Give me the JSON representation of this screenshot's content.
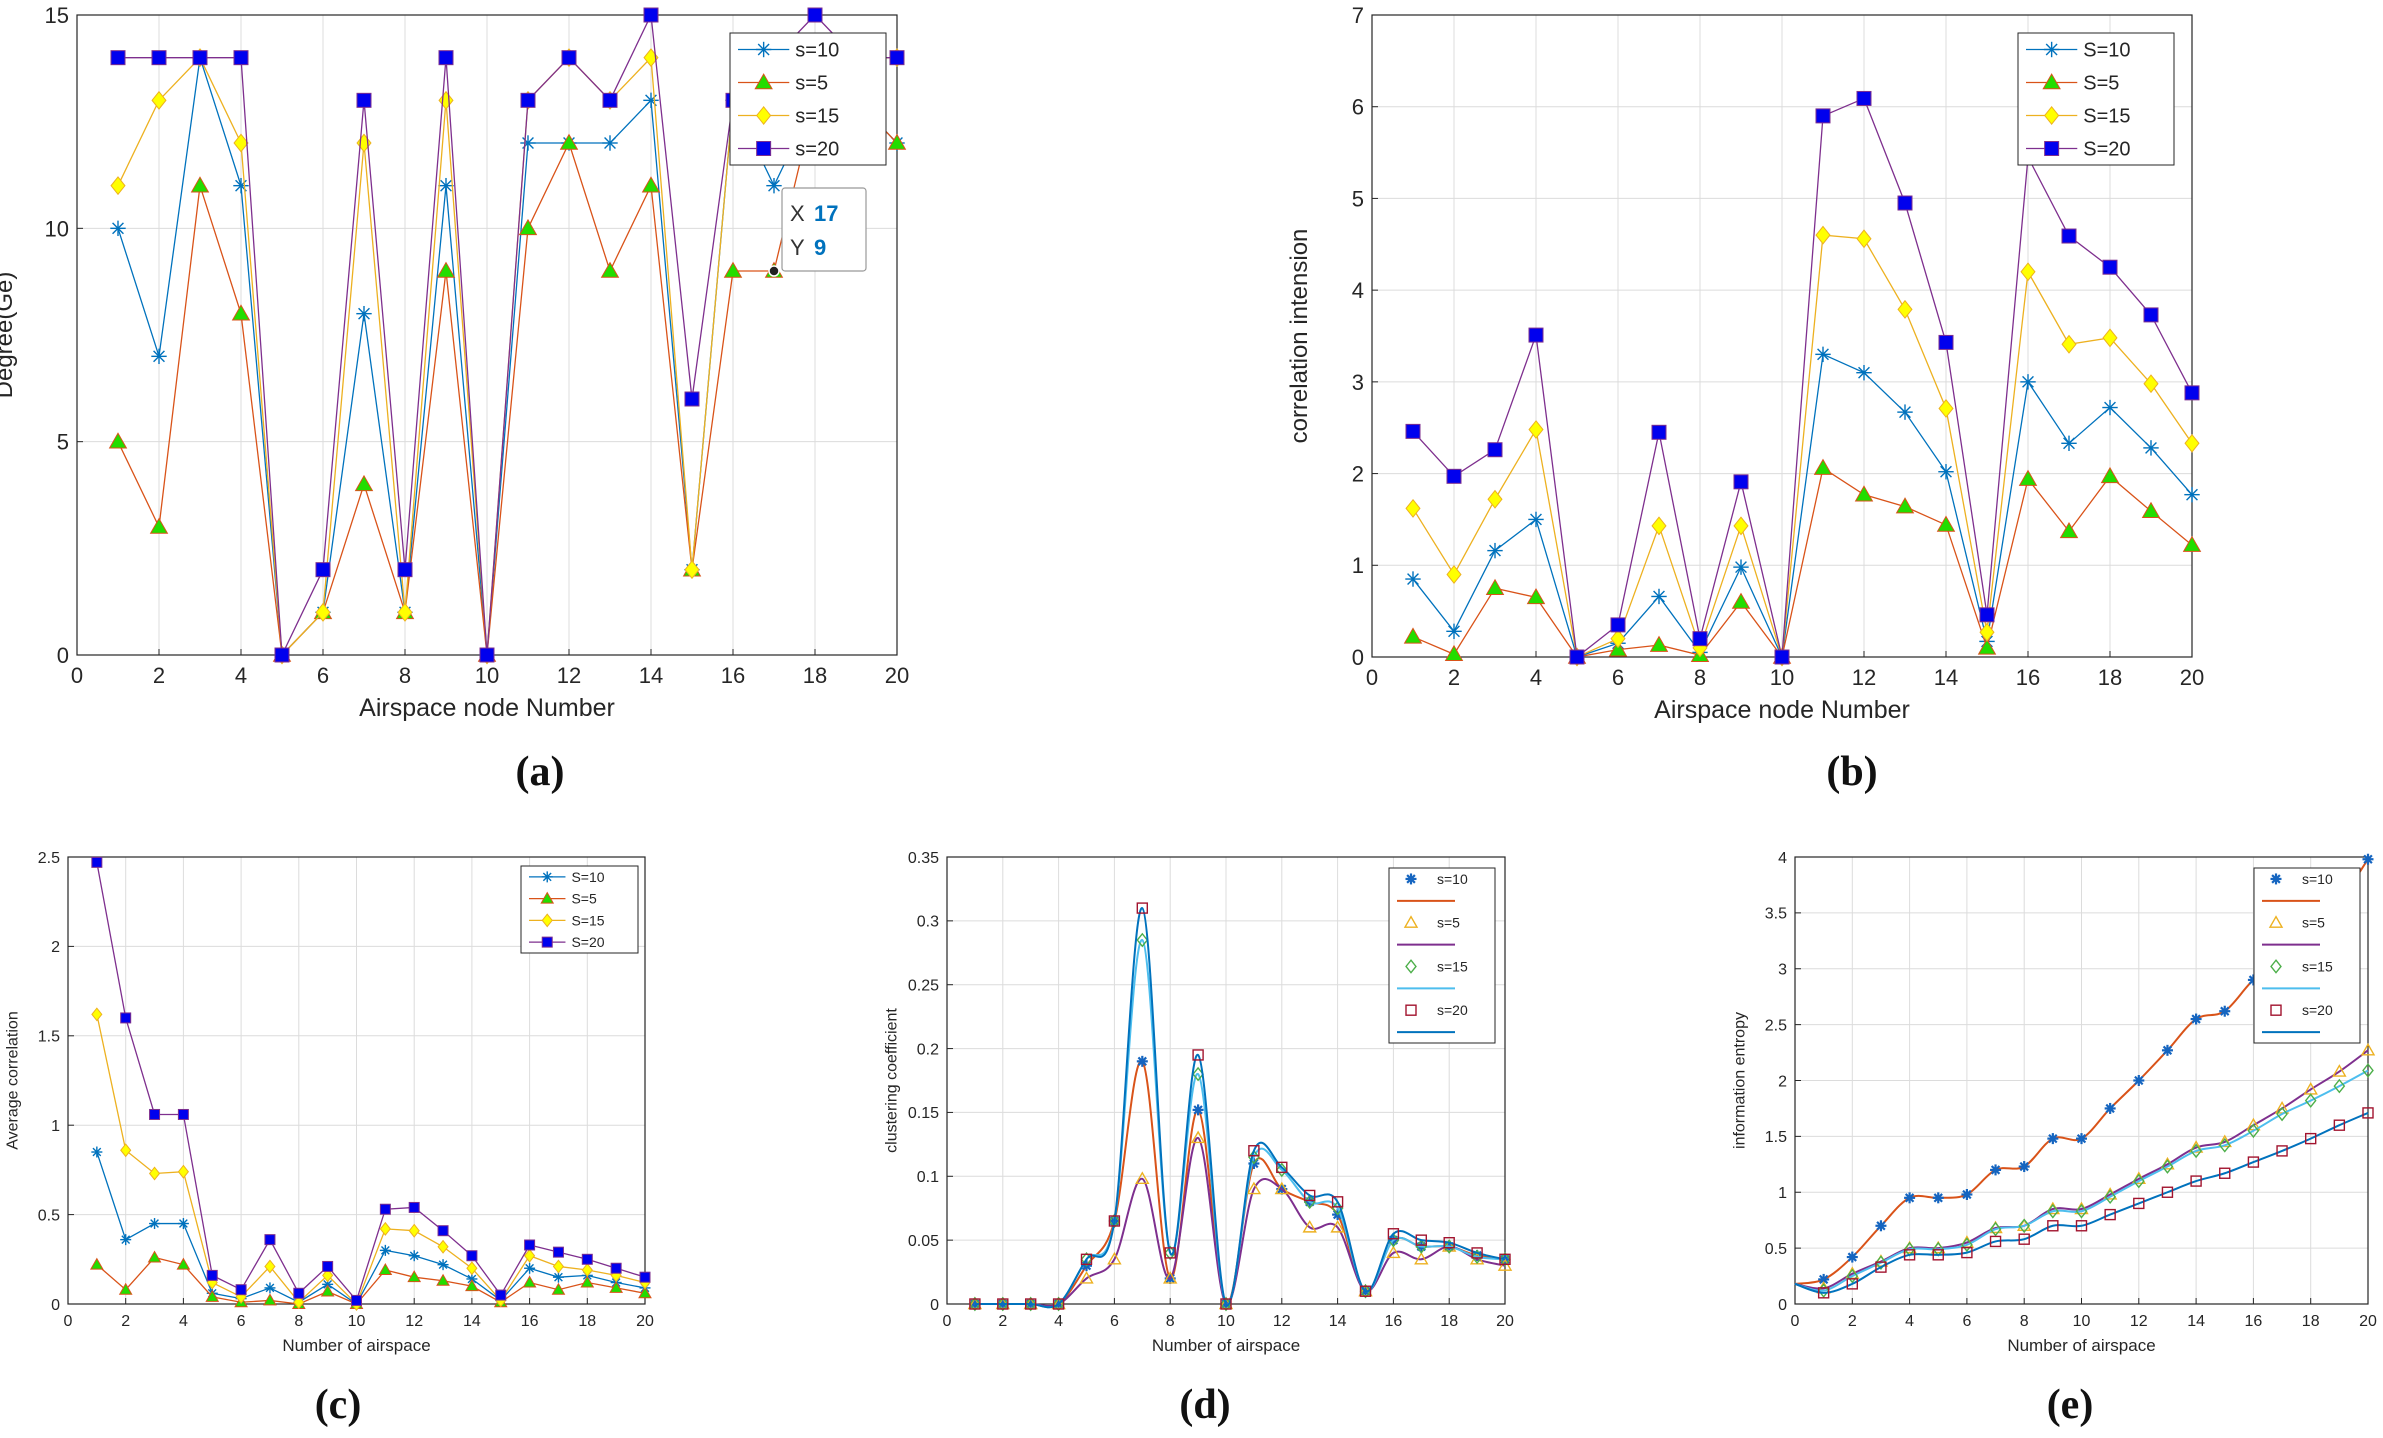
{
  "chart_data": [
    {
      "id": "a",
      "type": "line",
      "caption": "(a)",
      "xlabel": "Airspace node Number",
      "ylabel": "Degree(Ge)",
      "xlim": [
        0,
        20
      ],
      "ylim": [
        0,
        15
      ],
      "xticks": [
        0,
        2,
        4,
        6,
        8,
        10,
        12,
        14,
        16,
        18,
        20
      ],
      "yticks": [
        0,
        5,
        10,
        15
      ],
      "grid": true,
      "legend_position": "top-right",
      "x": [
        1,
        2,
        3,
        4,
        5,
        6,
        7,
        8,
        9,
        10,
        11,
        12,
        13,
        14,
        15,
        16,
        17,
        18,
        19,
        20
      ],
      "series": [
        {
          "name": "s=10",
          "color": "#0072BD",
          "marker": "star",
          "values": [
            10,
            7,
            14,
            11,
            0,
            1,
            8,
            1,
            11,
            0,
            12,
            12,
            12,
            13,
            2,
            13,
            11,
            13,
            13,
            12
          ]
        },
        {
          "name": "s=5",
          "color": "#D95319",
          "marker": "triangle-filled",
          "markerFill": "#22DD00",
          "values": [
            5,
            3,
            11,
            8,
            0,
            1,
            4,
            1,
            9,
            0,
            10,
            12,
            9,
            11,
            2,
            9,
            9,
            13,
            13,
            12
          ]
        },
        {
          "name": "s=15",
          "color": "#EDB120",
          "marker": "diamond-filled",
          "markerFill": "#FFFF00",
          "values": [
            11,
            13,
            14,
            12,
            0,
            1,
            12,
            1,
            13,
            0,
            13,
            14,
            13,
            14,
            2,
            13,
            14,
            14,
            14,
            14
          ]
        },
        {
          "name": "s=20",
          "color": "#7E2F8E",
          "marker": "square-filled",
          "markerFill": "#0000EE",
          "values": [
            14,
            14,
            14,
            14,
            0,
            2,
            13,
            2,
            14,
            0,
            13,
            14,
            13,
            15,
            6,
            13,
            14,
            15,
            14,
            14
          ]
        }
      ],
      "datatip": {
        "x_label": "X",
        "x_value": "17",
        "y_label": "Y",
        "y_value": "9",
        "point_x": 17,
        "point_y": 9
      }
    },
    {
      "id": "b",
      "type": "line",
      "caption": "(b)",
      "xlabel": "Airspace node Number",
      "ylabel": "correlation intension",
      "xlim": [
        0,
        20
      ],
      "ylim": [
        0,
        7
      ],
      "xticks": [
        0,
        2,
        4,
        6,
        8,
        10,
        12,
        14,
        16,
        18,
        20
      ],
      "yticks": [
        0,
        1,
        2,
        3,
        4,
        5,
        6,
        7
      ],
      "grid": true,
      "legend_position": "top-right",
      "x": [
        1,
        2,
        3,
        4,
        5,
        6,
        7,
        8,
        9,
        10,
        11,
        12,
        13,
        14,
        15,
        16,
        17,
        18,
        19,
        20
      ],
      "series": [
        {
          "name": "S=10",
          "color": "#0072BD",
          "marker": "star",
          "values": [
            0.85,
            0.28,
            1.16,
            1.5,
            0,
            0.15,
            0.66,
            0.05,
            0.98,
            0,
            3.3,
            3.1,
            2.67,
            2.02,
            0.17,
            3.0,
            2.33,
            2.72,
            2.28,
            1.77
          ]
        },
        {
          "name": "S=5",
          "color": "#D95319",
          "marker": "triangle-filled",
          "markerFill": "#22DD00",
          "values": [
            0.22,
            0.03,
            0.75,
            0.65,
            0,
            0.08,
            0.13,
            0.02,
            0.6,
            0,
            2.06,
            1.77,
            1.64,
            1.44,
            0.1,
            1.94,
            1.37,
            1.97,
            1.59,
            1.22
          ]
        },
        {
          "name": "S=15",
          "color": "#EDB120",
          "marker": "diamond-filled",
          "markerFill": "#FFFF00",
          "values": [
            1.62,
            0.9,
            1.72,
            2.48,
            0,
            0.2,
            1.43,
            0.1,
            1.43,
            0,
            4.6,
            4.56,
            3.79,
            2.71,
            0.27,
            4.2,
            3.41,
            3.48,
            2.98,
            2.33
          ]
        },
        {
          "name": "S=20",
          "color": "#7E2F8E",
          "marker": "square-filled",
          "markerFill": "#0000EE",
          "values": [
            2.46,
            1.97,
            2.26,
            3.51,
            0,
            0.35,
            2.45,
            0.2,
            1.91,
            0,
            5.9,
            6.09,
            4.95,
            3.43,
            0.46,
            5.45,
            4.59,
            4.25,
            3.73,
            2.88
          ]
        }
      ]
    },
    {
      "id": "c",
      "type": "line",
      "caption": "(c)",
      "xlabel": "Number of airspace",
      "ylabel": "Average correlation",
      "xlim": [
        0,
        20
      ],
      "ylim": [
        0,
        2.5
      ],
      "xticks": [
        0,
        2,
        4,
        6,
        8,
        10,
        12,
        14,
        16,
        18,
        20
      ],
      "yticks": [
        0,
        0.5,
        1,
        1.5,
        2,
        2.5
      ],
      "grid": true,
      "legend_position": "top-right",
      "x": [
        1,
        2,
        3,
        4,
        5,
        6,
        7,
        8,
        9,
        10,
        11,
        12,
        13,
        14,
        15,
        16,
        17,
        18,
        19,
        20
      ],
      "series": [
        {
          "name": "S=10",
          "color": "#0072BD",
          "marker": "star",
          "values": [
            0.85,
            0.36,
            0.45,
            0.45,
            0.06,
            0.03,
            0.09,
            0.01,
            0.11,
            0,
            0.3,
            0.27,
            0.22,
            0.14,
            0.02,
            0.2,
            0.15,
            0.16,
            0.12,
            0.09
          ]
        },
        {
          "name": "S=5",
          "color": "#D95319",
          "marker": "triangle-filled",
          "markerFill": "#22DD00",
          "values": [
            0.22,
            0.08,
            0.26,
            0.22,
            0.04,
            0.01,
            0.02,
            0,
            0.07,
            0,
            0.19,
            0.15,
            0.13,
            0.1,
            0.01,
            0.12,
            0.08,
            0.12,
            0.09,
            0.06
          ]
        },
        {
          "name": "S=15",
          "color": "#EDB120",
          "marker": "diamond-filled",
          "markerFill": "#FFFF00",
          "values": [
            1.62,
            0.86,
            0.73,
            0.74,
            0.12,
            0.04,
            0.21,
            0.01,
            0.16,
            0,
            0.42,
            0.41,
            0.32,
            0.2,
            0.02,
            0.27,
            0.21,
            0.19,
            0.16,
            0.12
          ]
        },
        {
          "name": "S=20",
          "color": "#7E2F8E",
          "marker": "square-filled",
          "markerFill": "#0000EE",
          "values": [
            2.47,
            1.6,
            1.06,
            1.06,
            0.16,
            0.08,
            0.36,
            0.06,
            0.21,
            0.02,
            0.53,
            0.54,
            0.41,
            0.27,
            0.05,
            0.33,
            0.29,
            0.25,
            0.2,
            0.15
          ]
        }
      ]
    },
    {
      "id": "d",
      "type": "line",
      "caption": "(d)",
      "xlabel": "Number of airspace",
      "ylabel": "clustering coefficient",
      "xlim": [
        0,
        20
      ],
      "ylim": [
        0,
        0.35
      ],
      "xticks": [
        0,
        2,
        4,
        6,
        8,
        10,
        12,
        14,
        16,
        18,
        20
      ],
      "yticks": [
        0,
        0.05,
        0.1,
        0.15,
        0.2,
        0.25,
        0.3,
        0.35
      ],
      "grid": true,
      "legend_position": "top-right",
      "x": [
        1,
        2,
        3,
        4,
        5,
        6,
        7,
        8,
        9,
        10,
        11,
        12,
        13,
        14,
        15,
        16,
        17,
        18,
        19,
        20
      ],
      "series": [
        {
          "name": "s=10",
          "color": "#1565C0",
          "lineColor": "#D95319",
          "marker": "asterisk",
          "values": [
            0,
            0,
            0,
            0,
            0.03,
            0.065,
            0.19,
            0.02,
            0.152,
            0,
            0.11,
            0.09,
            0.08,
            0.07,
            0.01,
            0.05,
            0.045,
            0.045,
            0.038,
            0.035
          ]
        },
        {
          "name": "s=5",
          "color": "#EDB120",
          "lineColor": "#7E2F8E",
          "marker": "triangle-open",
          "values": [
            0,
            0,
            0,
            0,
            0.02,
            0.035,
            0.098,
            0.02,
            0.13,
            0,
            0.09,
            0.09,
            0.06,
            0.06,
            0.01,
            0.04,
            0.035,
            0.045,
            0.035,
            0.03
          ]
        },
        {
          "name": "s=15",
          "color": "#4DAF4A",
          "lineColor": "#4DBEEE",
          "marker": "diamond-open",
          "values": [
            0,
            0,
            0,
            0,
            0.035,
            0.065,
            0.285,
            0.04,
            0.18,
            0,
            0.115,
            0.105,
            0.08,
            0.075,
            0.01,
            0.05,
            0.045,
            0.045,
            0.037,
            0.035
          ]
        },
        {
          "name": "s=20",
          "color": "#A2142F",
          "lineColor": "#0072BD",
          "marker": "square-open",
          "values": [
            0,
            0,
            0,
            0,
            0.035,
            0.065,
            0.31,
            0.04,
            0.195,
            0,
            0.12,
            0.107,
            0.085,
            0.08,
            0.01,
            0.055,
            0.05,
            0.048,
            0.04,
            0.035
          ]
        }
      ]
    },
    {
      "id": "e",
      "type": "line",
      "caption": "(e)",
      "xlabel": "Number of airspace",
      "ylabel": "information entropy",
      "xlim": [
        0,
        20
      ],
      "ylim": [
        0,
        4
      ],
      "xticks": [
        0,
        2,
        4,
        6,
        8,
        10,
        12,
        14,
        16,
        18,
        20
      ],
      "yticks": [
        0,
        0.5,
        1,
        1.5,
        2,
        2.5,
        3,
        3.5,
        4
      ],
      "grid": true,
      "legend_position": "top-right",
      "x": [
        0,
        1,
        2,
        3,
        4,
        5,
        6,
        7,
        8,
        9,
        10,
        11,
        12,
        13,
        14,
        15,
        16,
        17,
        18,
        19,
        20
      ],
      "series": [
        {
          "name": "s=10",
          "color": "#1565C0",
          "lineColor": "#D95319",
          "marker": "asterisk",
          "values": [
            0.18,
            0.22,
            0.42,
            0.7,
            0.95,
            0.95,
            0.98,
            1.2,
            1.23,
            1.48,
            1.48,
            1.75,
            2.0,
            2.27,
            2.55,
            2.62,
            2.9,
            3.08,
            3.33,
            3.6,
            3.98
          ]
        },
        {
          "name": "s=5",
          "color": "#EDB120",
          "lineColor": "#7E2F8E",
          "marker": "triangle-open",
          "values": [
            0.18,
            0.14,
            0.27,
            0.38,
            0.5,
            0.5,
            0.55,
            0.68,
            0.7,
            0.85,
            0.85,
            0.98,
            1.12,
            1.25,
            1.4,
            1.45,
            1.6,
            1.75,
            1.92,
            2.08,
            2.27
          ]
        },
        {
          "name": "s=15",
          "color": "#4DAF4A",
          "lineColor": "#4DBEEE",
          "marker": "diamond-open",
          "values": [
            0.18,
            0.12,
            0.25,
            0.37,
            0.49,
            0.49,
            0.53,
            0.67,
            0.7,
            0.83,
            0.83,
            0.96,
            1.1,
            1.23,
            1.37,
            1.42,
            1.55,
            1.7,
            1.82,
            1.95,
            2.09
          ]
        },
        {
          "name": "s=20",
          "color": "#A2142F",
          "lineColor": "#0072BD",
          "marker": "square-open",
          "values": [
            0.18,
            0.1,
            0.18,
            0.33,
            0.44,
            0.44,
            0.46,
            0.56,
            0.58,
            0.7,
            0.7,
            0.8,
            0.9,
            1.0,
            1.1,
            1.17,
            1.27,
            1.37,
            1.48,
            1.6,
            1.71
          ]
        }
      ]
    }
  ]
}
